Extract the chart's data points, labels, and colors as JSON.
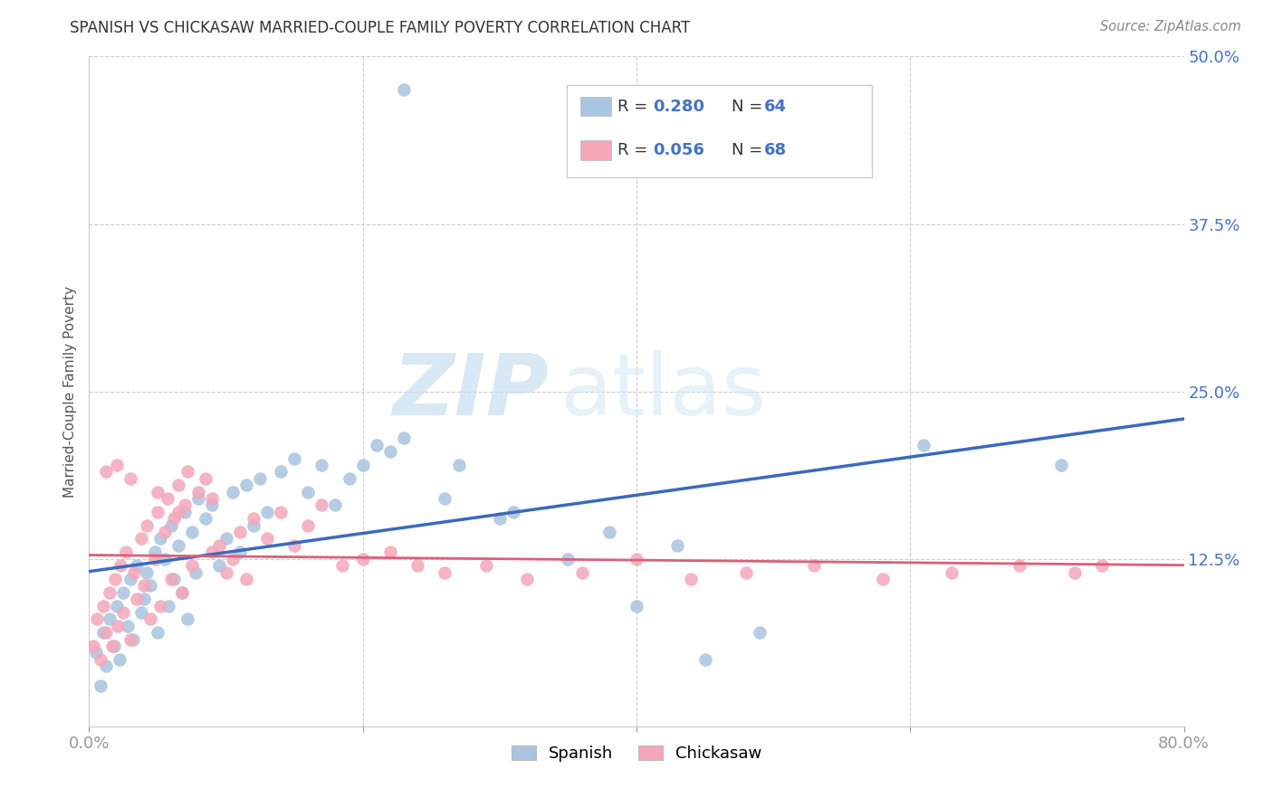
{
  "title": "SPANISH VS CHICKASAW MARRIED-COUPLE FAMILY POVERTY CORRELATION CHART",
  "source": "Source: ZipAtlas.com",
  "ylabel": "Married-Couple Family Poverty",
  "xlim": [
    0.0,
    0.8
  ],
  "ylim": [
    0.0,
    0.5
  ],
  "xticks": [
    0.0,
    0.2,
    0.4,
    0.6,
    0.8
  ],
  "yticks": [
    0.0,
    0.125,
    0.25,
    0.375,
    0.5
  ],
  "right_yticklabels": [
    "",
    "12.5%",
    "25.0%",
    "37.5%",
    "50.0%"
  ],
  "xticklabels": [
    "0.0%",
    "",
    "",
    "",
    "80.0%"
  ],
  "spanish_color": "#a8c4e0",
  "chickasaw_color": "#f4a7b9",
  "trend_spanish_color": "#3a6abf",
  "trend_chickasaw_color": "#d9607a",
  "legend_R1": "R = 0.280",
  "legend_N1": "N = 64",
  "legend_R2": "R = 0.056",
  "legend_N2": "N = 68",
  "watermark_zip": "ZIP",
  "watermark_atlas": "atlas",
  "spanish_x": [
    0.005,
    0.008,
    0.01,
    0.012,
    0.015,
    0.018,
    0.02,
    0.022,
    0.025,
    0.028,
    0.03,
    0.032,
    0.035,
    0.038,
    0.04,
    0.042,
    0.045,
    0.048,
    0.05,
    0.052,
    0.055,
    0.058,
    0.06,
    0.062,
    0.065,
    0.068,
    0.07,
    0.072,
    0.075,
    0.078,
    0.08,
    0.085,
    0.09,
    0.095,
    0.1,
    0.105,
    0.11,
    0.115,
    0.12,
    0.125,
    0.13,
    0.14,
    0.15,
    0.16,
    0.17,
    0.18,
    0.19,
    0.2,
    0.21,
    0.22,
    0.23,
    0.26,
    0.27,
    0.3,
    0.31,
    0.35,
    0.38,
    0.43,
    0.45,
    0.49,
    0.61,
    0.71,
    0.23,
    0.4
  ],
  "spanish_y": [
    0.055,
    0.03,
    0.07,
    0.045,
    0.08,
    0.06,
    0.09,
    0.05,
    0.1,
    0.075,
    0.11,
    0.065,
    0.12,
    0.085,
    0.095,
    0.115,
    0.105,
    0.13,
    0.07,
    0.14,
    0.125,
    0.09,
    0.15,
    0.11,
    0.135,
    0.1,
    0.16,
    0.08,
    0.145,
    0.115,
    0.17,
    0.155,
    0.165,
    0.12,
    0.14,
    0.175,
    0.13,
    0.18,
    0.15,
    0.185,
    0.16,
    0.19,
    0.2,
    0.175,
    0.195,
    0.165,
    0.185,
    0.195,
    0.21,
    0.205,
    0.215,
    0.17,
    0.195,
    0.155,
    0.16,
    0.125,
    0.145,
    0.135,
    0.05,
    0.07,
    0.21,
    0.195,
    0.475,
    0.09
  ],
  "chickasaw_x": [
    0.003,
    0.006,
    0.008,
    0.01,
    0.012,
    0.015,
    0.017,
    0.019,
    0.021,
    0.023,
    0.025,
    0.027,
    0.03,
    0.033,
    0.035,
    0.038,
    0.04,
    0.042,
    0.045,
    0.048,
    0.05,
    0.052,
    0.055,
    0.057,
    0.06,
    0.062,
    0.065,
    0.068,
    0.07,
    0.072,
    0.075,
    0.08,
    0.085,
    0.09,
    0.095,
    0.1,
    0.105,
    0.11,
    0.115,
    0.12,
    0.13,
    0.14,
    0.15,
    0.16,
    0.17,
    0.185,
    0.2,
    0.22,
    0.24,
    0.26,
    0.29,
    0.32,
    0.36,
    0.4,
    0.44,
    0.48,
    0.53,
    0.58,
    0.63,
    0.68,
    0.72,
    0.74,
    0.012,
    0.02,
    0.03,
    0.05,
    0.065,
    0.09
  ],
  "chickasaw_y": [
    0.06,
    0.08,
    0.05,
    0.09,
    0.07,
    0.1,
    0.06,
    0.11,
    0.075,
    0.12,
    0.085,
    0.13,
    0.065,
    0.115,
    0.095,
    0.14,
    0.105,
    0.15,
    0.08,
    0.125,
    0.16,
    0.09,
    0.145,
    0.17,
    0.11,
    0.155,
    0.18,
    0.1,
    0.165,
    0.19,
    0.12,
    0.175,
    0.185,
    0.13,
    0.135,
    0.115,
    0.125,
    0.145,
    0.11,
    0.155,
    0.14,
    0.16,
    0.135,
    0.15,
    0.165,
    0.12,
    0.125,
    0.13,
    0.12,
    0.115,
    0.12,
    0.11,
    0.115,
    0.125,
    0.11,
    0.115,
    0.12,
    0.11,
    0.115,
    0.12,
    0.115,
    0.12,
    0.19,
    0.195,
    0.185,
    0.175,
    0.16,
    0.17
  ]
}
